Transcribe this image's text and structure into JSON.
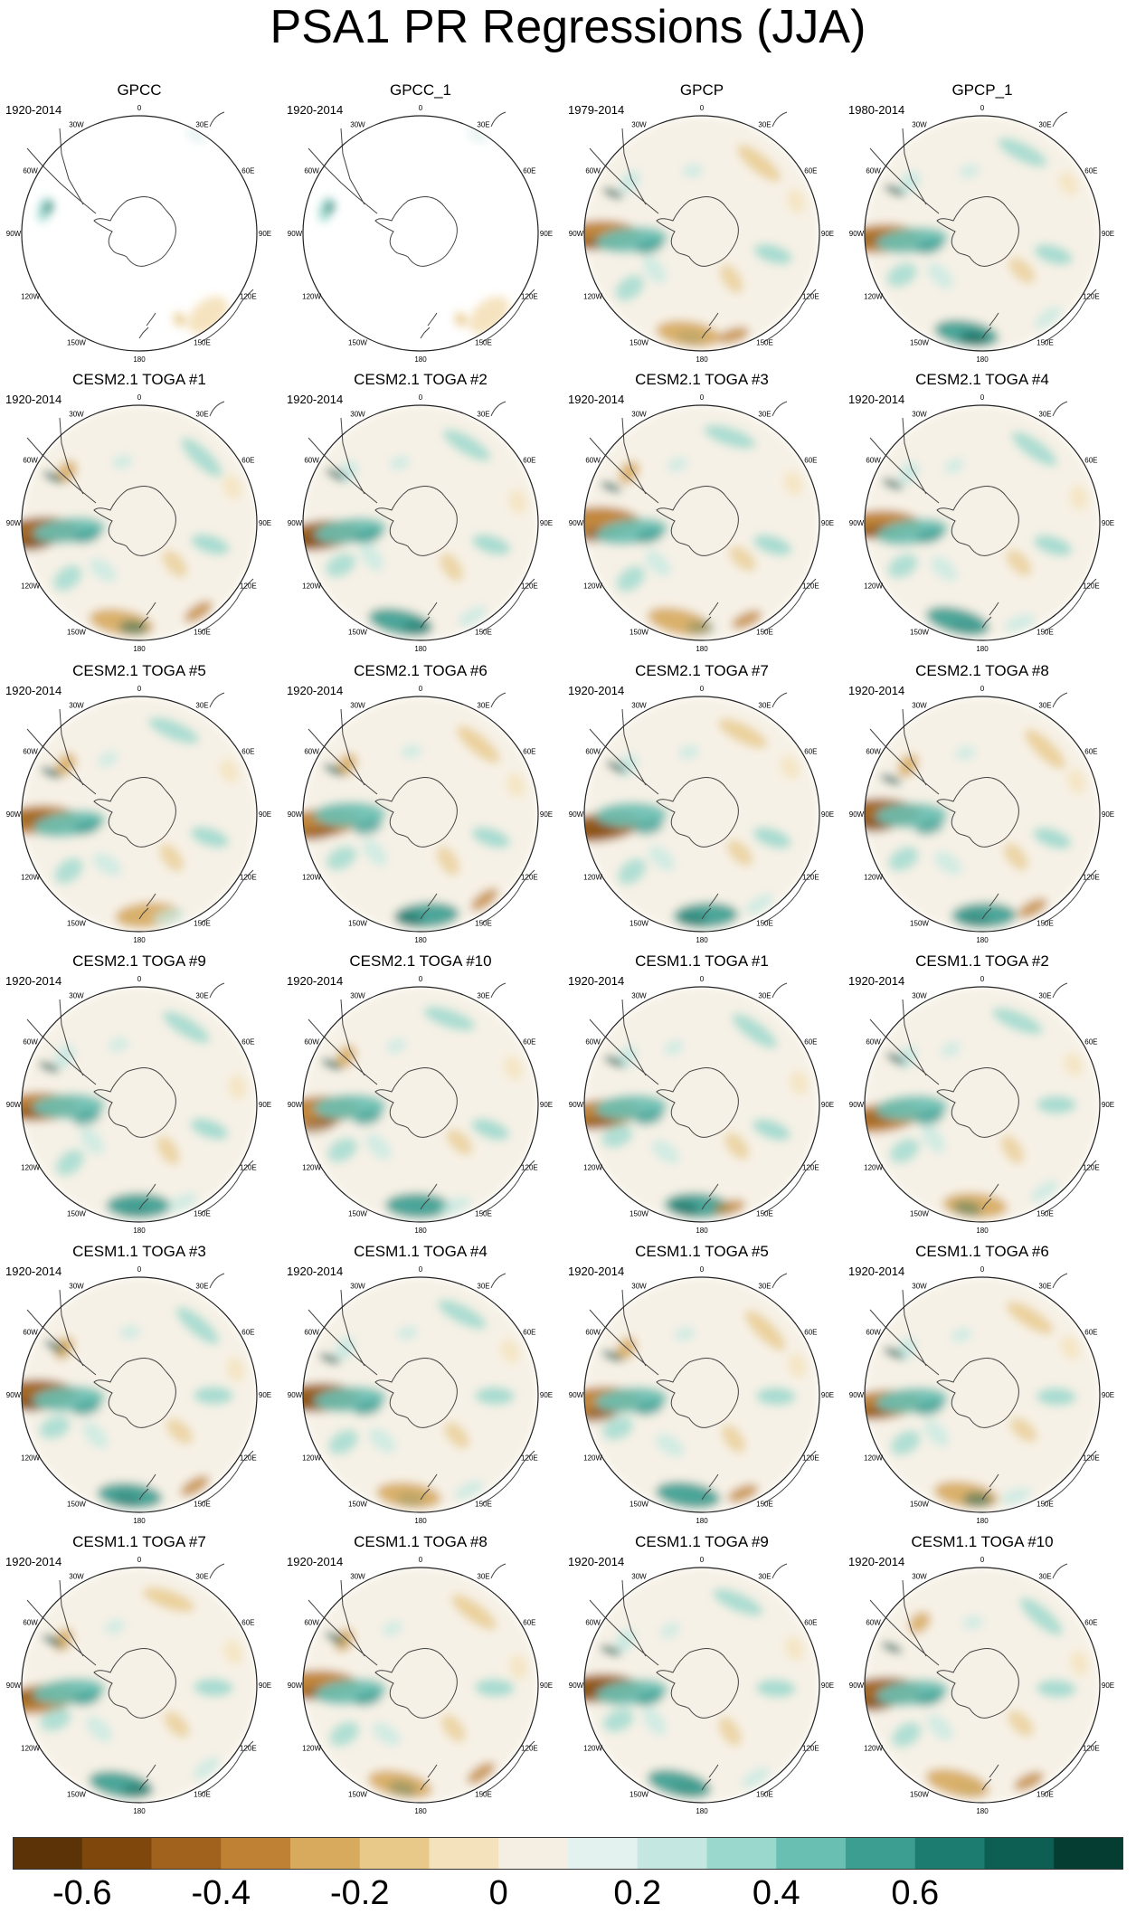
{
  "title": "PSA1 PR Regressions (JJA)",
  "longitude_labels": [
    "0",
    "30E",
    "60E",
    "90E",
    "120E",
    "150E",
    "180",
    "150W",
    "120W",
    "90W",
    "60W",
    "30W"
  ],
  "panels": [
    {
      "name": "GPCC",
      "period": "1920-2014",
      "style": "sparse"
    },
    {
      "name": "GPCC_1",
      "period": "1920-2014",
      "style": "sparse"
    },
    {
      "name": "GPCP",
      "period": "1979-2014",
      "style": "gpcp"
    },
    {
      "name": "GPCP_1",
      "period": "1980-2014",
      "style": "gpcp"
    },
    {
      "name": "CESM2.1 TOGA #1",
      "period": "1920-2014",
      "style": "model"
    },
    {
      "name": "CESM2.1 TOGA #2",
      "period": "1920-2014",
      "style": "model"
    },
    {
      "name": "CESM2.1 TOGA #3",
      "period": "1920-2014",
      "style": "model"
    },
    {
      "name": "CESM2.1 TOGA #4",
      "period": "1920-2014",
      "style": "model"
    },
    {
      "name": "CESM2.1 TOGA #5",
      "period": "1920-2014",
      "style": "model"
    },
    {
      "name": "CESM2.1 TOGA #6",
      "period": "1920-2014",
      "style": "model"
    },
    {
      "name": "CESM2.1 TOGA #7",
      "period": "1920-2014",
      "style": "model"
    },
    {
      "name": "CESM2.1 TOGA #8",
      "period": "1920-2014",
      "style": "model"
    },
    {
      "name": "CESM2.1 TOGA #9",
      "period": "1920-2014",
      "style": "model"
    },
    {
      "name": "CESM2.1 TOGA #10",
      "period": "1920-2014",
      "style": "model"
    },
    {
      "name": "CESM1.1 TOGA #1",
      "period": "1920-2014",
      "style": "model"
    },
    {
      "name": "CESM1.1 TOGA #2",
      "period": "1920-2014",
      "style": "model"
    },
    {
      "name": "CESM1.1 TOGA #3",
      "period": "1920-2014",
      "style": "model"
    },
    {
      "name": "CESM1.1 TOGA #4",
      "period": "1920-2014",
      "style": "model"
    },
    {
      "name": "CESM1.1 TOGA #5",
      "period": "1920-2014",
      "style": "model"
    },
    {
      "name": "CESM1.1 TOGA #6",
      "period": "1920-2014",
      "style": "model"
    },
    {
      "name": "CESM1.1 TOGA #7",
      "period": "1920-2014",
      "style": "model"
    },
    {
      "name": "CESM1.1 TOGA #8",
      "period": "1920-2014",
      "style": "model"
    },
    {
      "name": "CESM1.1 TOGA #9",
      "period": "1920-2014",
      "style": "model"
    },
    {
      "name": "CESM1.1 TOGA #10",
      "period": "1920-2014",
      "style": "model"
    }
  ],
  "colorbar": {
    "colors": [
      "#5c3306",
      "#7f470b",
      "#a0621d",
      "#bf8234",
      "#d7aa5e",
      "#e8c98a",
      "#f4e2bc",
      "#f4efe2",
      "#e3f1ef",
      "#c4e8e1",
      "#9ad8cd",
      "#69bfb2",
      "#3c9d91",
      "#1c7c70",
      "#0d5f54",
      "#053d32"
    ],
    "tick_labels": [
      "-0.6",
      "-0.4",
      "-0.2",
      "0",
      "0.2",
      "0.4",
      "0.6"
    ]
  }
}
